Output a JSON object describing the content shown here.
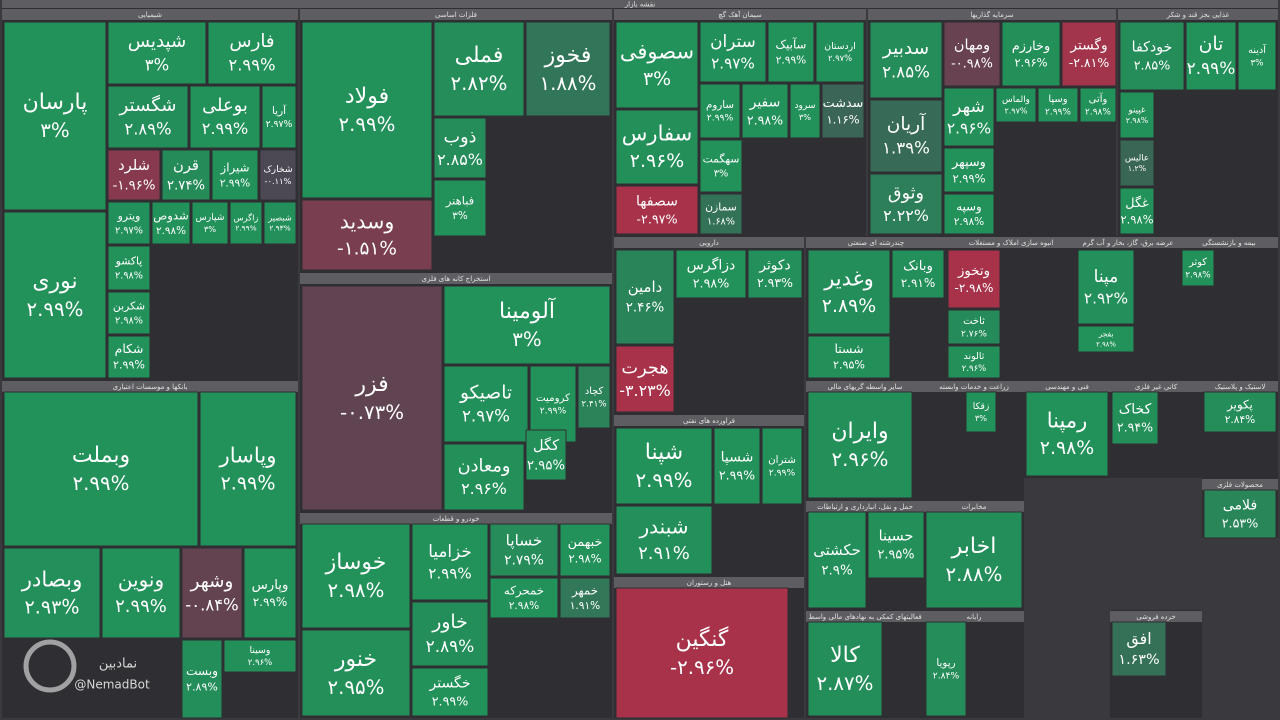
{
  "chart_data": {
    "type": "treemap",
    "title": "نقشه بازار",
    "up_color": "#22915a",
    "down_color": "#a8324a",
    "flat_color": "#4a4a54",
    "watermark": {
      "name": "نمادبین",
      "handle": "@NemadBot"
    },
    "sectors": [
      {
        "name": "شیمیایی",
        "tiles": [
          {
            "name": "پارسان",
            "value": 3,
            "value_label": "۳%"
          },
          {
            "name": "نوری",
            "value": 2.99,
            "value_label": "۲.۹۹%"
          },
          {
            "name": "شپدیس",
            "value": 3,
            "value_label": "۳%"
          },
          {
            "name": "فارس",
            "value": 2.99,
            "value_label": "۲.۹۹%"
          },
          {
            "name": "شگستر",
            "value": 2.89,
            "value_label": "۲.۸۹%"
          },
          {
            "name": "بوعلی",
            "value": 2.99,
            "value_label": "۲.۹۹%"
          },
          {
            "name": "آریا",
            "value": 2.97,
            "value_label": "۲.۹۷%"
          },
          {
            "name": "شلرد",
            "value": -1.96,
            "value_label": "-۱.۹۶%"
          },
          {
            "name": "قرن",
            "value": 2.74,
            "value_label": "۲.۷۴%"
          },
          {
            "name": "شیراز",
            "value": 2.99,
            "value_label": "۲.۹۹%"
          },
          {
            "name": "شخارک",
            "value": -0.11,
            "value_label": "-۰.۱۱%"
          },
          {
            "name": "ویترو",
            "value": 2.97,
            "value_label": "۲.۹۷%"
          },
          {
            "name": "شدوص",
            "value": 2.98,
            "value_label": "۲.۹۸%"
          },
          {
            "name": "شپارس",
            "value": 3,
            "value_label": "۳%"
          },
          {
            "name": "زاگرس",
            "value": 2.99,
            "value_label": "۲.۹۹%"
          },
          {
            "name": "شبصیر",
            "value": 2.93,
            "value_label": "۲.۹۳%"
          },
          {
            "name": "پاکشو",
            "value": 2.98,
            "value_label": "۲.۹۸%"
          },
          {
            "name": "شکربن",
            "value": 2.98,
            "value_label": "۲.۹۸%"
          },
          {
            "name": "شکام",
            "value": 2.99,
            "value_label": "۲.۹۹%"
          }
        ]
      },
      {
        "name": "بانکها و موسسات اعتباری",
        "tiles": [
          {
            "name": "وبملت",
            "value": 2.99,
            "value_label": "۲.۹۹%"
          },
          {
            "name": "وپاسار",
            "value": 2.99,
            "value_label": "۲.۹۹%"
          },
          {
            "name": "وبصادر",
            "value": 2.93,
            "value_label": "۲.۹۳%"
          },
          {
            "name": "ونوین",
            "value": 2.99,
            "value_label": "۲.۹۹%"
          },
          {
            "name": "وشهر",
            "value": -0.84,
            "value_label": "-۰.۸۴%"
          },
          {
            "name": "وپارس",
            "value": 2.99,
            "value_label": "۲.۹۹%"
          },
          {
            "name": "وبست",
            "value": 2.89,
            "value_label": "۲.۸۹%"
          },
          {
            "name": "وسینا",
            "value": 2.96,
            "value_label": "۲.۹۶%"
          }
        ]
      },
      {
        "name": "فلزات اساسی",
        "tiles": [
          {
            "name": "فولاد",
            "value": 2.99,
            "value_label": "۲.۹۹%"
          },
          {
            "name": "وسدید",
            "value": -1.51,
            "value_label": "-۱.۵۱%"
          },
          {
            "name": "فملی",
            "value": 2.82,
            "value_label": "۲.۸۲%"
          },
          {
            "name": "فخوز",
            "value": 1.88,
            "value_label": "۱.۸۸%"
          },
          {
            "name": "ذوب",
            "value": 2.85,
            "value_label": "۲.۸۵%"
          },
          {
            "name": "فباهنر",
            "value": 3,
            "value_label": "۳%"
          }
        ]
      },
      {
        "name": "استخراج کانه های فلزی",
        "tiles": [
          {
            "name": "فزر",
            "value": -0.73,
            "value_label": "-۰.۷۳%"
          },
          {
            "name": "آلومینا",
            "value": 3,
            "value_label": "۳%"
          },
          {
            "name": "تاصیکو",
            "value": 2.97,
            "value_label": "۲.۹۷%"
          },
          {
            "name": "کرومیت",
            "value": 2.99,
            "value_label": "۲.۹۹%"
          },
          {
            "name": "کچاد",
            "value": 2.41,
            "value_label": "۲.۴۱%"
          },
          {
            "name": "ومعادن",
            "value": 2.96,
            "value_label": "۲.۹۶%"
          },
          {
            "name": "کگل",
            "value": 2.95,
            "value_label": "۲.۹۵%"
          }
        ]
      },
      {
        "name": "خودرو و قطعات",
        "tiles": [
          {
            "name": "خساپا",
            "value": 2.79,
            "value_label": "۲.۷۹%"
          },
          {
            "name": "خوساز",
            "value": 2.98,
            "value_label": "۲.۹۸%"
          },
          {
            "name": "خنور",
            "value": 2.95,
            "value_label": "۲.۹۵%"
          },
          {
            "name": "خزامیا",
            "value": 2.99,
            "value_label": "۲.۹۹%"
          },
          {
            "name": "خاور",
            "value": 2.89,
            "value_label": "۲.۸۹%"
          },
          {
            "name": "خگستر",
            "value": 2.99,
            "value_label": "۲.۹۹%"
          },
          {
            "name": "خبهمن",
            "value": 2.98,
            "value_label": "۲.۹۸%"
          },
          {
            "name": "خمحرکه",
            "value": 2.98,
            "value_label": "۲.۹۸%"
          },
          {
            "name": "خمهر",
            "value": 1.91,
            "value_label": "۱.۹۱%"
          }
        ]
      },
      {
        "name": "سیمان آهک گچ",
        "tiles": [
          {
            "name": "سصوفی",
            "value": 3,
            "value_label": "۳%"
          },
          {
            "name": "سفارس",
            "value": 2.96,
            "value_label": "۲.۹۶%"
          },
          {
            "name": "سصفها",
            "value": -2.97,
            "value_label": "-۲.۹۷%"
          },
          {
            "name": "ستران",
            "value": 2.97,
            "value_label": "۲.۹۷%"
          },
          {
            "name": "سآبیک",
            "value": 2.99,
            "value_label": "۲.۹۹%"
          },
          {
            "name": "اردستان",
            "value": 2.97,
            "value_label": "۲.۹۷%"
          },
          {
            "name": "ساروم",
            "value": 2.99,
            "value_label": "۲.۹۹%"
          },
          {
            "name": "سفیر",
            "value": 2.98,
            "value_label": "۲.۹۸%"
          },
          {
            "name": "سرود",
            "value": 3,
            "value_label": "۳%"
          },
          {
            "name": "سدشت",
            "value": 1.16,
            "value_label": "۱.۱۶%"
          },
          {
            "name": "سهگمت",
            "value": 3,
            "value_label": "۳%"
          },
          {
            "name": "سمازن",
            "value": 1.68,
            "value_label": "۱.۶۸%"
          }
        ]
      },
      {
        "name": "سرمایه گذاریها",
        "tiles": [
          {
            "name": "سدبیر",
            "value": 2.85,
            "value_label": "۲.۸۵%"
          },
          {
            "name": "ومهان",
            "value": -0.98,
            "value_label": "-۰.۹۸%"
          },
          {
            "name": "وخارزم",
            "value": 2.96,
            "value_label": "۲.۹۶%"
          },
          {
            "name": "وگستر",
            "value": -2.81,
            "value_label": "-۲.۸۱%"
          },
          {
            "name": "آریان",
            "value": 1.39,
            "value_label": "۱.۳۹%"
          },
          {
            "name": "وثوق",
            "value": 2.22,
            "value_label": "۲.۲۲%"
          },
          {
            "name": "شهر",
            "value": 2.96,
            "value_label": "۲.۹۶%"
          },
          {
            "name": "وسپهر",
            "value": 2.99,
            "value_label": "۲.۹۹%"
          },
          {
            "name": "وسپه",
            "value": 2.98,
            "value_label": "۲.۹۸%"
          },
          {
            "name": "والماس",
            "value": 2.97,
            "value_label": "۲.۹۷%"
          },
          {
            "name": "وسپا",
            "value": 2.99,
            "value_label": "۲.۹۹%"
          },
          {
            "name": "وآتی",
            "value": 2.98,
            "value_label": "۲.۹۸%"
          }
        ]
      },
      {
        "name": "غذایی بجز قند و شکر",
        "tiles": [
          {
            "name": "خودکفا",
            "value": 2.85,
            "value_label": "۲.۸۵%"
          },
          {
            "name": "تان",
            "value": 2.99,
            "value_label": "۲.۹۹%"
          },
          {
            "name": "آدینه",
            "value": 3,
            "value_label": "۳%"
          },
          {
            "name": "غپینو",
            "value": 2.98,
            "value_label": "۲.۹۸%"
          },
          {
            "name": "عالیس",
            "value": 1.2,
            "value_label": "۱.۲%"
          },
          {
            "name": "غگل",
            "value": 2.98,
            "value_label": "۲.۹۸%"
          }
        ]
      },
      {
        "name": "دارویی",
        "tiles": [
          {
            "name": "دامین",
            "value": 2.46,
            "value_label": "۲.۴۶%"
          },
          {
            "name": "هجرت",
            "value": -3.23,
            "value_label": "-۳.۲۳%"
          },
          {
            "name": "دزاگرس",
            "value": 2.98,
            "value_label": "۲.۹۸%"
          },
          {
            "name": "دکوثر",
            "value": 2.93,
            "value_label": "۲.۹۳%"
          }
        ]
      },
      {
        "name": "فراورده های نفتی",
        "tiles": [
          {
            "name": "شپنا",
            "value": 2.99,
            "value_label": "۲.۹۹%"
          },
          {
            "name": "شبندر",
            "value": 2.91,
            "value_label": "۲.۹۱%"
          },
          {
            "name": "شسپا",
            "value": 2.99,
            "value_label": "۲.۹۹%"
          },
          {
            "name": "شتران",
            "value": 2.99,
            "value_label": "۲.۹۹%"
          }
        ]
      },
      {
        "name": "هتل و رستوران",
        "tiles": [
          {
            "name": "گنگین",
            "value": -2.96,
            "value_label": "-۲.۹۶%"
          }
        ]
      },
      {
        "name": "چندرشته ای صنعتی",
        "tiles": [
          {
            "name": "وغدیر",
            "value": 2.89,
            "value_label": "۲.۸۹%"
          },
          {
            "name": "شستا",
            "value": 2.95,
            "value_label": "۲.۹۵%"
          },
          {
            "name": "وبانک",
            "value": 2.91,
            "value_label": "۲.۹۱%"
          }
        ]
      },
      {
        "name": "انبوه سازی املاک و مستغلات",
        "tiles": [
          {
            "name": "وتخوز",
            "value": -2.98,
            "value_label": "-۲.۹۸%"
          },
          {
            "name": "ثاخت",
            "value": 2.76,
            "value_label": "۲.۷۶%"
          },
          {
            "name": "ثالوند",
            "value": 2.96,
            "value_label": "۲.۹۶%"
          }
        ]
      },
      {
        "name": "عرضه برق، گاز، بخار و آب گرم",
        "tiles": [
          {
            "name": "مپنا",
            "value": 2.92,
            "value_label": "۲.۹۲%"
          },
          {
            "name": "بفجر",
            "value": 2.98,
            "value_label": "۲.۹۸%"
          }
        ]
      },
      {
        "name": "بیمه و بازنشستگی",
        "tiles": [
          {
            "name": "کوثر",
            "value": 2.98,
            "value_label": "۲.۹۸%"
          }
        ]
      },
      {
        "name": "سایر واسطه گریهای مالی",
        "tiles": [
          {
            "name": "وایران",
            "value": 2.96,
            "value_label": "۲.۹۶%"
          }
        ]
      },
      {
        "name": "زراعت و خدمات وابسته",
        "tiles": [
          {
            "name": "زقکا",
            "value": 3,
            "value_label": "۳%"
          }
        ]
      },
      {
        "name": "فنی و مهندسی",
        "tiles": [
          {
            "name": "رمپنا",
            "value": 2.98,
            "value_label": "۲.۹۸%"
          }
        ]
      },
      {
        "name": "کانی غیر فلزی",
        "tiles": [
          {
            "name": "کخاک",
            "value": 2.94,
            "value_label": "۲.۹۴%"
          }
        ]
      },
      {
        "name": "لاستیک و پلاستیک",
        "tiles": [
          {
            "name": "پکویر",
            "value": 2.84,
            "value_label": "۲.۸۴%"
          }
        ]
      },
      {
        "name": "حمل و نقل، انبارداری و ارتباطات",
        "tiles": [
          {
            "name": "حکشتی",
            "value": 2.9,
            "value_label": "۲.۹%"
          },
          {
            "name": "حسینا",
            "value": 2.95,
            "value_label": "۲.۹۵%"
          }
        ]
      },
      {
        "name": "مخابرات",
        "tiles": [
          {
            "name": "اخابر",
            "value": 2.88,
            "value_label": "۲.۸۸%"
          }
        ]
      },
      {
        "name": "فعالیتهای کمکی به نهادهای مالی واسط",
        "tiles": [
          {
            "name": "کالا",
            "value": 2.87,
            "value_label": "۲.۸۷%"
          }
        ]
      },
      {
        "name": "رایانه",
        "tiles": [
          {
            "name": "رپویا",
            "value": 2.84,
            "value_label": "۲.۸۴%"
          }
        ]
      },
      {
        "name": "محصولات فلزی",
        "tiles": [
          {
            "name": "فلامی",
            "value": 2.53,
            "value_label": "۲.۵۳%"
          }
        ]
      },
      {
        "name": "خرده فروشی",
        "tiles": [
          {
            "name": "افق",
            "value": 1.63,
            "value_label": "۱.۶۳%"
          }
        ]
      }
    ]
  }
}
